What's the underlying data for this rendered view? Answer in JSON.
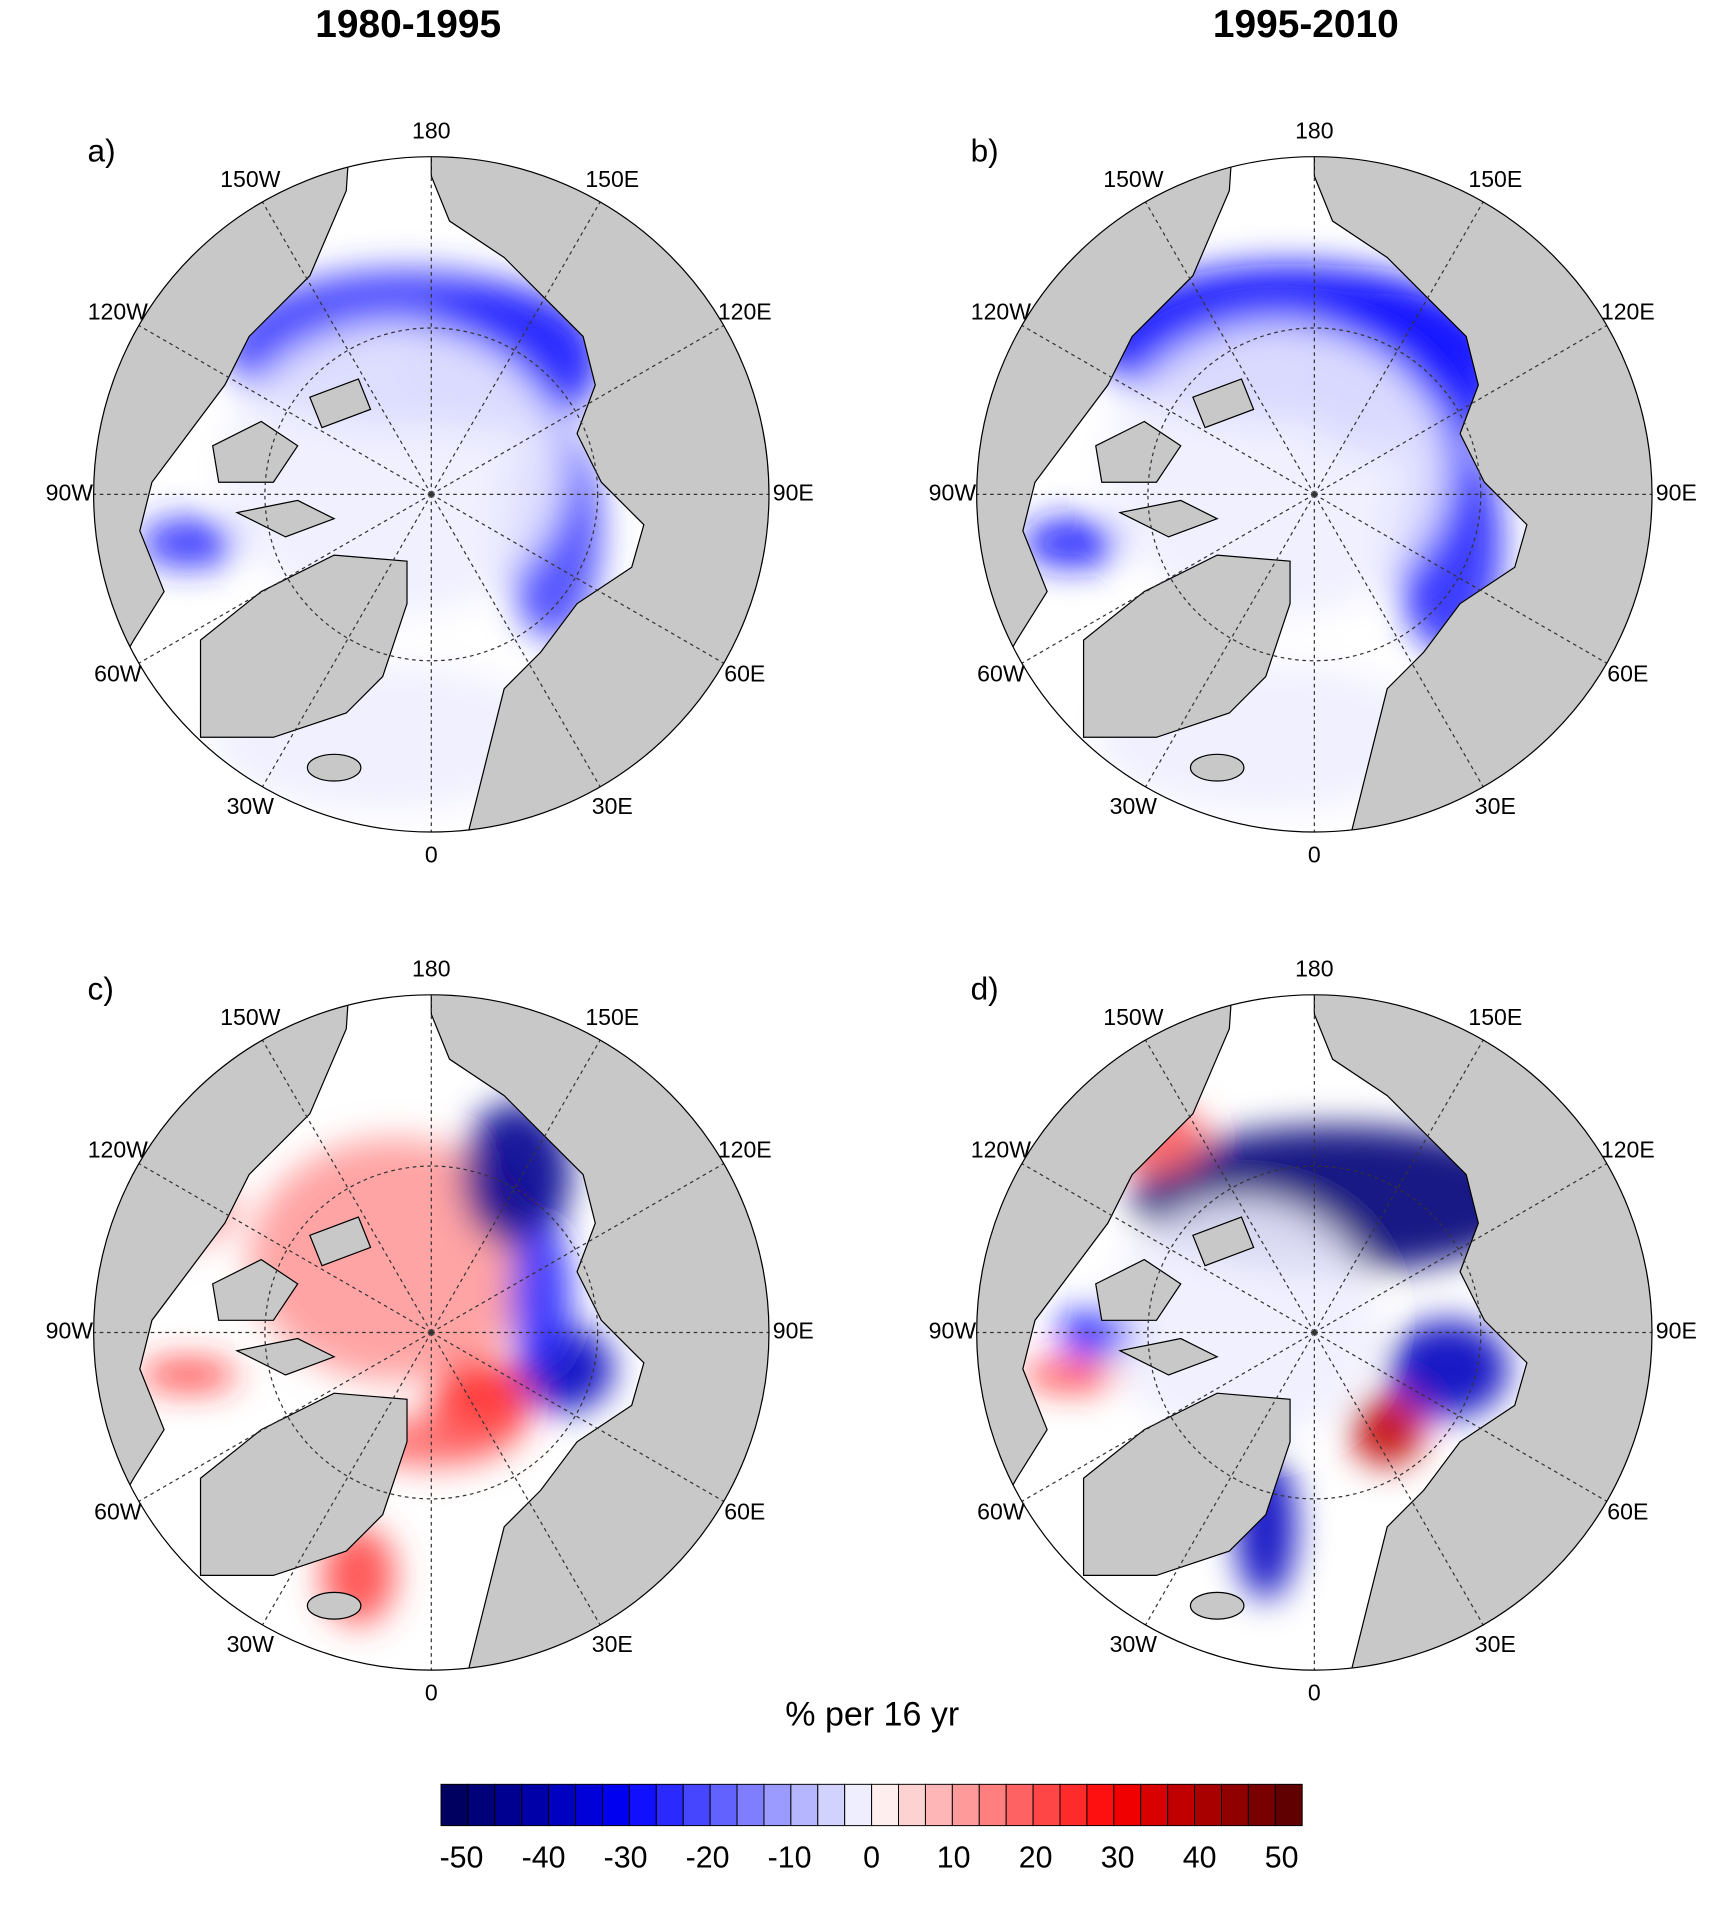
{
  "titles": [
    "1980-1995",
    "1995-2010"
  ],
  "panels": [
    {
      "label": "a)"
    },
    {
      "label": "b)"
    },
    {
      "label": "c)"
    },
    {
      "label": "d)"
    }
  ],
  "longitude_labels": [
    "0",
    "30E",
    "60E",
    "90E",
    "120E",
    "150E",
    "180",
    "150W",
    "120W",
    "90W",
    "60W",
    "30W"
  ],
  "colorbar": {
    "label": "% per 16 yr",
    "lim": [
      -52.5,
      52.5
    ],
    "ticks": [
      -50,
      -40,
      -30,
      -20,
      -10,
      0,
      10,
      20,
      30,
      40,
      50
    ],
    "colors": [
      "#000060",
      "#000078",
      "#000090",
      "#0000a8",
      "#0000c0",
      "#0000d8",
      "#0000f0",
      "#1010ff",
      "#2a2aff",
      "#4646ff",
      "#6262ff",
      "#7e7eff",
      "#9a9aff",
      "#b6b6ff",
      "#d2d2ff",
      "#eeeeff",
      "#ffeeee",
      "#ffd2d2",
      "#ffb6b6",
      "#ff9a9a",
      "#ff7e7e",
      "#ff6262",
      "#ff4646",
      "#ff2a2a",
      "#ff1010",
      "#f00000",
      "#d80000",
      "#c00000",
      "#a80000",
      "#900000",
      "#780000",
      "#600000"
    ]
  }
}
